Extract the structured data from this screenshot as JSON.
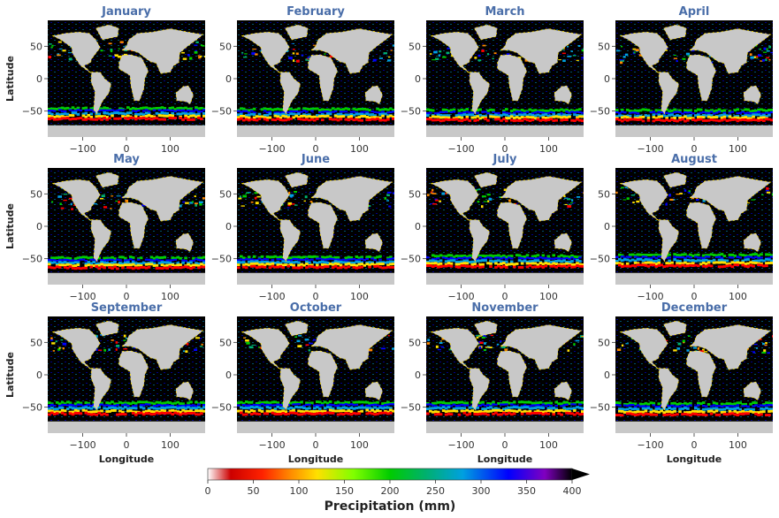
{
  "chart_data": {
    "type": "heatmap",
    "layout": "3 rows x 4 columns of global maps",
    "panels": [
      {
        "title": "January"
      },
      {
        "title": "February"
      },
      {
        "title": "March"
      },
      {
        "title": "April"
      },
      {
        "title": "May"
      },
      {
        "title": "June"
      },
      {
        "title": "July"
      },
      {
        "title": "August"
      },
      {
        "title": "September"
      },
      {
        "title": "October"
      },
      {
        "title": "November"
      },
      {
        "title": "December"
      }
    ],
    "xlabel": "Longitude",
    "ylabel": "Latitude",
    "xlim": [
      -180,
      180
    ],
    "ylim": [
      -90,
      90
    ],
    "xticks": [
      -100,
      0,
      100
    ],
    "yticks": [
      50,
      0,
      -50
    ],
    "xtick_labels": [
      "−100",
      "0",
      "100"
    ],
    "ytick_labels": [
      "50",
      "0",
      "−50"
    ],
    "land_color": "#c8c8c8",
    "low_value_color": "#000000",
    "colorbar": {
      "label": "Precipitation (mm)",
      "min": 0,
      "max": 400,
      "extend": "max",
      "ticks": [
        0,
        50,
        100,
        150,
        200,
        250,
        300,
        350,
        400
      ],
      "tick_labels": [
        "0",
        "50",
        "100",
        "150",
        "200",
        "250",
        "300",
        "350",
        "400"
      ],
      "colormap_stops": [
        {
          "value": 0,
          "color": "#ffffff"
        },
        {
          "value": 25,
          "color": "#cc0000"
        },
        {
          "value": 60,
          "color": "#ff2200"
        },
        {
          "value": 90,
          "color": "#ff8800"
        },
        {
          "value": 120,
          "color": "#ffe000"
        },
        {
          "value": 160,
          "color": "#80ff00"
        },
        {
          "value": 200,
          "color": "#00cc00"
        },
        {
          "value": 240,
          "color": "#00b070"
        },
        {
          "value": 280,
          "color": "#00a0e0"
        },
        {
          "value": 330,
          "color": "#0000ff"
        },
        {
          "value": 370,
          "color": "#8000c0"
        },
        {
          "value": 400,
          "color": "#000000"
        }
      ]
    }
  }
}
